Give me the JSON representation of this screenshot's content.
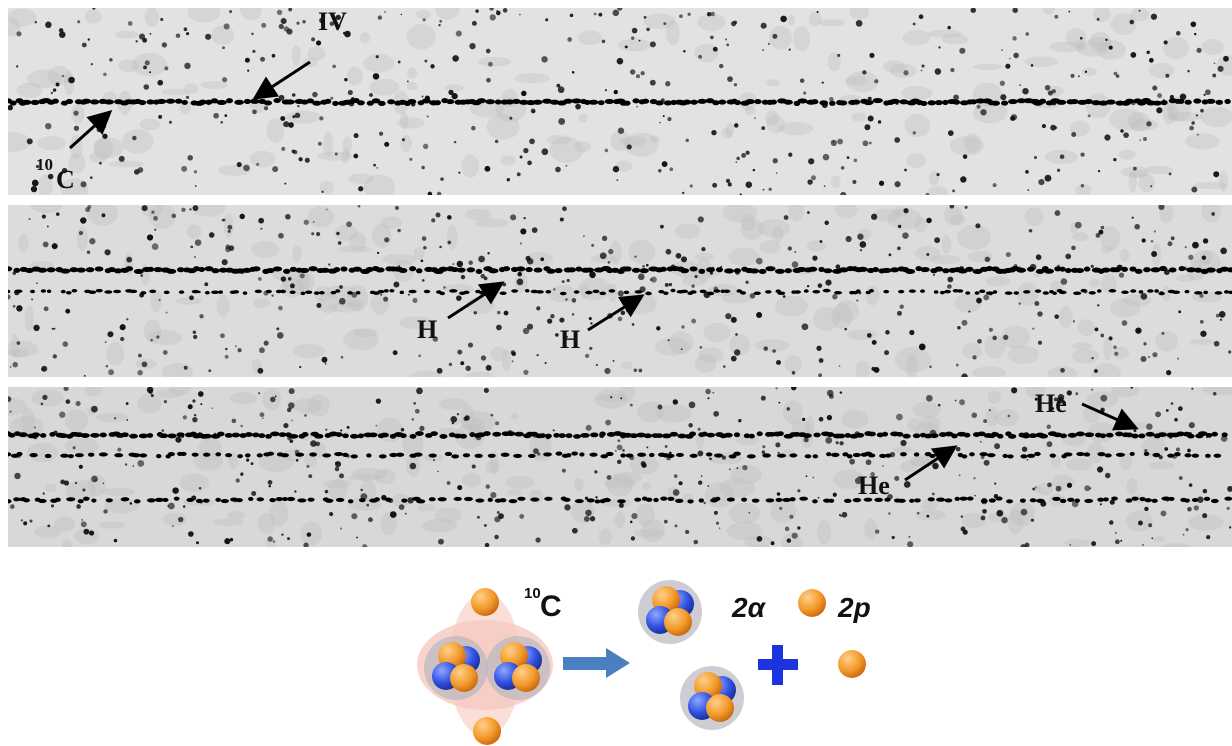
{
  "panels": [
    {
      "labels": [
        "IV",
        "10",
        "C"
      ]
    },
    {
      "labels": [
        "H",
        "H"
      ]
    },
    {
      "labels": [
        "He",
        "He"
      ]
    }
  ],
  "diagram": {
    "nucleus": {
      "mass": "10",
      "symbol": "C"
    },
    "products": [
      "2α",
      "2p"
    ]
  }
}
